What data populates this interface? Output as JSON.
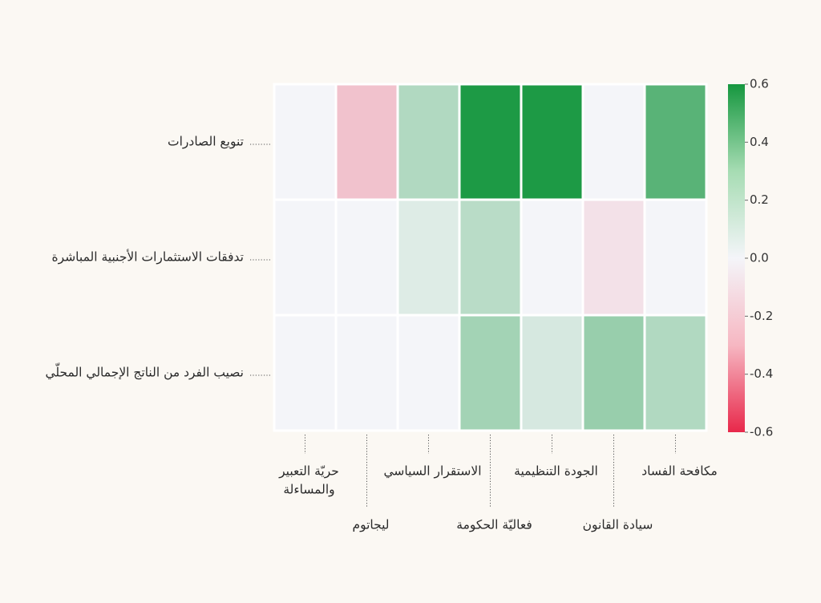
{
  "chart_data": {
    "type": "heatmap",
    "rows": [
      "تنويع الصادرات",
      "تدفقات الاستثمارات الأجنبية المباشرة",
      "نصيب الفرد من الناتج الإجمالي المحلّي"
    ],
    "columns": [
      [
        "حريّة التعبير",
        "والمساءلة"
      ],
      [
        "ليجاتوم"
      ],
      [
        "الاستقرار السياسي"
      ],
      [
        "فعاليّة الحكومة"
      ],
      [
        "الجودة التنظيمية"
      ],
      [
        "سيادة القانون"
      ],
      [
        "مكافحة الفساد"
      ]
    ],
    "values": [
      [
        0.0,
        -0.15,
        0.18,
        0.58,
        0.58,
        0.0,
        0.42
      ],
      [
        0.0,
        0.0,
        0.06,
        0.16,
        0.0,
        -0.06,
        0.0
      ],
      [
        0.0,
        0.0,
        0.0,
        0.22,
        0.08,
        0.25,
        0.18
      ]
    ],
    "colorbar": {
      "min": -0.6,
      "max": 0.6,
      "ticks": [
        "0.6",
        "0.4",
        "0.2",
        "0.0",
        "-0.2",
        "-0.4",
        "-0.6"
      ],
      "colors": {
        "negative": "#e8284a",
        "zero": "#f4f5f9",
        "positive": "#16973f"
      }
    }
  }
}
